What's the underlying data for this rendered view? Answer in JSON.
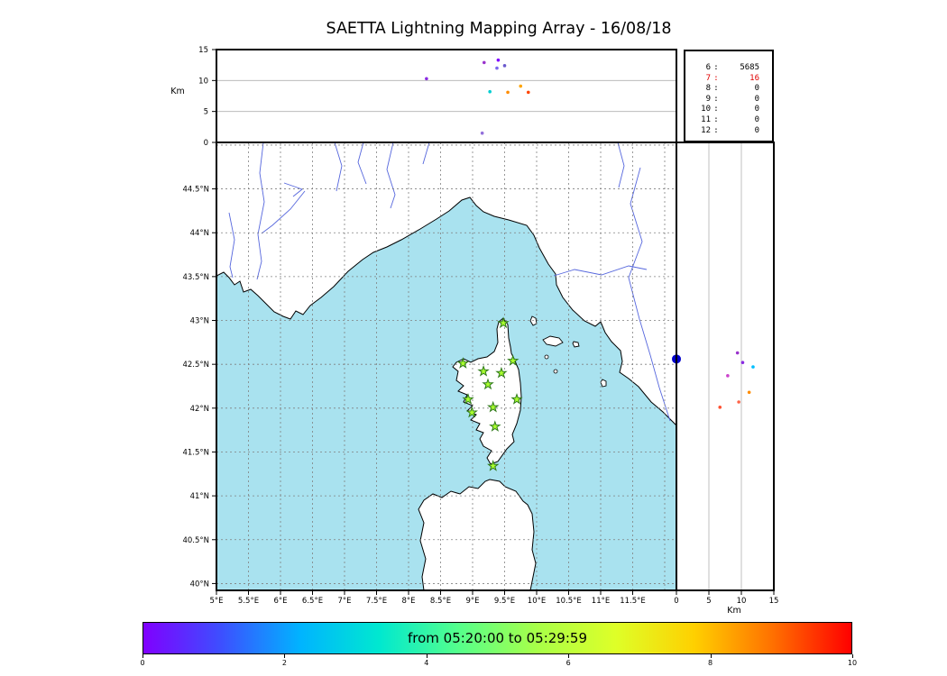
{
  "title": "SAETTA Lightning Mapping Array - 16/08/18",
  "alt_lon_panel": {
    "ylabel": "Km",
    "ytick_labels": [
      "0",
      "5",
      "10",
      "15"
    ],
    "ytick_values": [
      0,
      5,
      10,
      15
    ],
    "grid_y": [
      5,
      10
    ]
  },
  "station_stats": {
    "separator": ":",
    "rows": [
      {
        "id": "6",
        "count": "5685",
        "highlight": false
      },
      {
        "id": "7",
        "count": "16",
        "highlight": true
      },
      {
        "id": "8",
        "count": "0",
        "highlight": false
      },
      {
        "id": "9",
        "count": "0",
        "highlight": false
      },
      {
        "id": "10",
        "count": "0",
        "highlight": false
      },
      {
        "id": "11",
        "count": "0",
        "highlight": false
      },
      {
        "id": "12",
        "count": "0",
        "highlight": false
      }
    ]
  },
  "map": {
    "lat_tick_labels": [
      "44.5°N",
      "44°N",
      "43.5°N",
      "43°N",
      "42.5°N",
      "42°N",
      "41.5°N",
      "41°N",
      "40.5°N",
      "40°N"
    ],
    "lat_tick_values": [
      44.5,
      44,
      43.5,
      43,
      42.5,
      42,
      41.5,
      41,
      40.5,
      40
    ],
    "lon_tick_labels": [
      "5°E",
      "5.5°E",
      "6°E",
      "6.5°E",
      "7°E",
      "7.5°E",
      "8°E",
      "8.5°E",
      "9°E",
      "9.5°E",
      "10°E",
      "10.5°E",
      "11°E",
      "11.5°E"
    ],
    "lon_tick_values": [
      5,
      5.5,
      6,
      6.5,
      7,
      7.5,
      8,
      8.5,
      9,
      9.5,
      10,
      10.5,
      11,
      11.5
    ],
    "lon_grid_values": [
      5,
      5.5,
      6,
      6.5,
      7,
      7.5,
      8,
      8.5,
      9,
      9.5,
      10,
      10.5,
      11,
      11.5,
      12
    ],
    "lat_grid_values": [
      40,
      40.5,
      41,
      41.5,
      42,
      42.5,
      43,
      43.5,
      44,
      44.5,
      45
    ]
  },
  "alt_lat_panel": {
    "xlabel": "Km",
    "xtick_labels": [
      "0",
      "5",
      "10",
      "15"
    ],
    "xtick_values": [
      0,
      5,
      10,
      15
    ],
    "grid_x": [
      5,
      10
    ]
  },
  "colorbar": {
    "label": "from 05:20:00 to 05:29:59",
    "tick_labels": [
      "0",
      "2",
      "4",
      "6",
      "8",
      "10"
    ],
    "tick_values": [
      0,
      2,
      4,
      6,
      8,
      10
    ],
    "gradient": [
      "#8000ff",
      "#3c50ff",
      "#00b4ff",
      "#00e8d0",
      "#54ff8c",
      "#a8ff48",
      "#deff28",
      "#ffd000",
      "#ff7000",
      "#ff0000"
    ]
  },
  "colors": {
    "sea": "#a9e2ef",
    "land": "#ffffff",
    "coast": "#000000",
    "river": "#5566dd",
    "grid": "#808080",
    "panel_grid": "#b0b0b0",
    "station_fill": "#aaff2f",
    "station_edge": "#2f7a1a",
    "highlight_red": "#e00000",
    "big_dot": "#0000cc"
  },
  "chart_data": [
    {
      "type": "scatter",
      "name": "altitude-vs-longitude",
      "title": "VHF source altitude vs longitude",
      "ylabel": "Km",
      "xlim": [
        5,
        12.18
      ],
      "ylim": [
        0,
        15
      ],
      "yticks": [
        0,
        5,
        10,
        15
      ],
      "grid_y": [
        5,
        10
      ],
      "points": [
        {
          "x": 8.28,
          "y": 10.3,
          "color": "#8a2be2"
        },
        {
          "x": 9.18,
          "y": 12.9,
          "color": "#9932cc"
        },
        {
          "x": 9.4,
          "y": 13.3,
          "color": "#8000ff"
        },
        {
          "x": 9.5,
          "y": 12.4,
          "color": "#6a5acd"
        },
        {
          "x": 9.38,
          "y": 12.0,
          "color": "#7b68ee"
        },
        {
          "x": 9.27,
          "y": 8.2,
          "color": "#00ced1"
        },
        {
          "x": 9.55,
          "y": 8.1,
          "color": "#ff8c00"
        },
        {
          "x": 9.75,
          "y": 9.1,
          "color": "#ffa500"
        },
        {
          "x": 9.87,
          "y": 8.1,
          "color": "#ff4500"
        },
        {
          "x": 9.15,
          "y": 1.5,
          "color": "#9370db"
        }
      ]
    },
    {
      "type": "scatter",
      "name": "map-stations",
      "marker": "star",
      "points": [
        {
          "lon": 9.48,
          "lat": 42.97
        },
        {
          "lon": 8.85,
          "lat": 42.51
        },
        {
          "lon": 9.17,
          "lat": 42.42
        },
        {
          "lon": 9.45,
          "lat": 42.4
        },
        {
          "lon": 9.63,
          "lat": 42.54
        },
        {
          "lon": 9.24,
          "lat": 42.27
        },
        {
          "lon": 8.93,
          "lat": 42.1
        },
        {
          "lon": 9.69,
          "lat": 42.1
        },
        {
          "lon": 8.99,
          "lat": 41.95
        },
        {
          "lon": 9.32,
          "lat": 42.01
        },
        {
          "lon": 9.35,
          "lat": 41.79
        },
        {
          "lon": 9.32,
          "lat": 41.34
        }
      ]
    },
    {
      "type": "scatter",
      "name": "altitude-vs-latitude",
      "xlabel": "Km",
      "xlim": [
        0,
        15
      ],
      "xticks": [
        0,
        5,
        10,
        15
      ],
      "grid_x": [
        5,
        10
      ],
      "ylim": [
        39.92,
        45.03
      ],
      "points": [
        {
          "x": 0.0,
          "y": 42.56,
          "color": "#0000cc",
          "size": "large"
        },
        {
          "x": 9.4,
          "y": 42.63,
          "color": "#9932cc"
        },
        {
          "x": 10.2,
          "y": 42.52,
          "color": "#8a2be2"
        },
        {
          "x": 7.9,
          "y": 42.37,
          "color": "#cc44cc"
        },
        {
          "x": 11.8,
          "y": 42.47,
          "color": "#00bfff"
        },
        {
          "x": 11.2,
          "y": 42.18,
          "color": "#ff8c00"
        },
        {
          "x": 9.6,
          "y": 42.07,
          "color": "#ff6347"
        },
        {
          "x": 6.7,
          "y": 42.01,
          "color": "#ff5030"
        }
      ]
    },
    {
      "type": "table",
      "name": "source-counts",
      "columns": [
        "level",
        "count"
      ],
      "rows": [
        [
          "6",
          "5685"
        ],
        [
          "7",
          "16"
        ],
        [
          "8",
          "0"
        ],
        [
          "9",
          "0"
        ],
        [
          "10",
          "0"
        ],
        [
          "11",
          "0"
        ],
        [
          "12",
          "0"
        ]
      ]
    },
    {
      "type": "colorbar",
      "name": "time-colorbar",
      "label": "from 05:20:00 to 05:29:59",
      "range": [
        0,
        10
      ],
      "ticks": [
        0,
        2,
        4,
        6,
        8,
        10
      ]
    }
  ]
}
